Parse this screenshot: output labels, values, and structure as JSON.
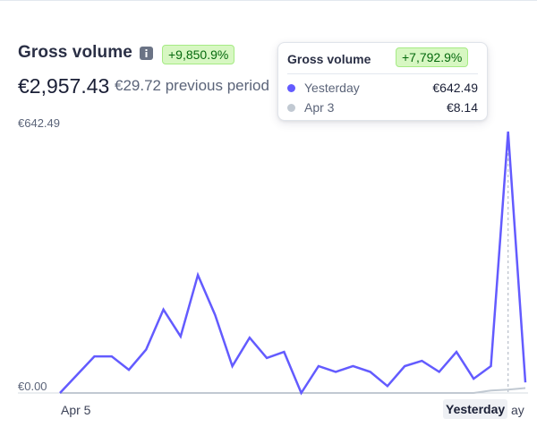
{
  "header": {
    "title": "Gross volume",
    "change_badge": "+9,850.9%",
    "amount": "€2,957.43",
    "previous": "€29.72 previous period"
  },
  "tooltip": {
    "title": "Gross volume",
    "change_badge": "+7,792.9%",
    "rows": [
      {
        "label": "Yesterday",
        "value": "€642.49"
      },
      {
        "label": "Apr 3",
        "value": "€8.14"
      }
    ]
  },
  "chart_data": {
    "type": "line",
    "title": "Gross volume",
    "xlabel": "",
    "ylabel": "",
    "ylim": [
      0,
      642.49
    ],
    "y_ticks": [
      "€642.49",
      "€0.00"
    ],
    "x_tick_labels": {
      "start": "Apr 5",
      "end": "Yesterday",
      "end_trailing": "ay"
    },
    "grid": false,
    "series": [
      {
        "name": "",
        "color": "#635bff",
        "values": [
          0,
          45,
          90,
          90,
          57,
          107,
          205,
          139,
          290,
          192,
          66,
          136,
          86,
          101,
          0,
          66,
          52,
          66,
          52,
          17,
          66,
          79,
          52,
          101,
          35,
          66,
          642.49,
          26
        ]
      },
      {
        "name": "",
        "color": "#c1c9d2",
        "values": [
          0,
          0,
          0,
          0,
          0,
          0,
          0,
          0,
          0,
          0,
          0,
          0,
          0,
          0,
          0,
          0,
          0,
          0,
          0,
          0,
          0,
          0,
          0,
          0,
          0,
          6,
          8.14,
          12
        ]
      }
    ],
    "highlight_index": 26
  },
  "colors": {
    "primary_line": "#635bff",
    "secondary_line": "#c1c9d2",
    "badge_bg": "#d7f7c2",
    "badge_text": "#05690d"
  },
  "icons": {
    "info": "info-icon"
  }
}
